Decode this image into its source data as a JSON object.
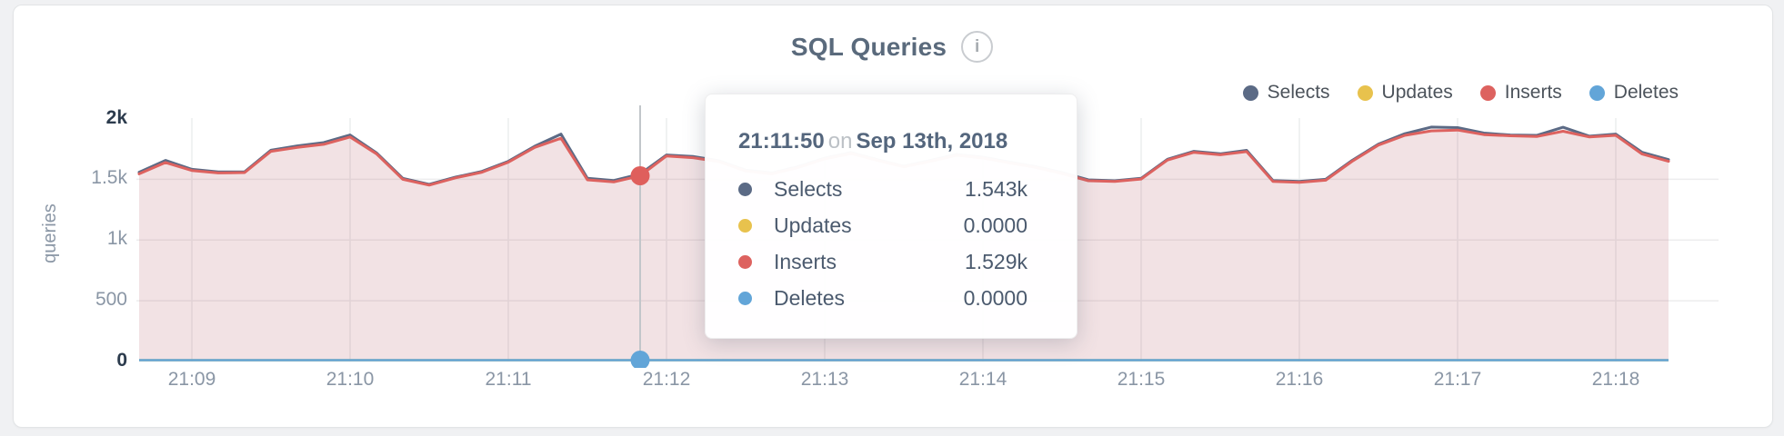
{
  "header": {
    "title": "SQL Queries",
    "info_icon": "i"
  },
  "legend": [
    {
      "label": "Selects",
      "color": "#5b6a85"
    },
    {
      "label": "Updates",
      "color": "#e8c24d"
    },
    {
      "label": "Inserts",
      "color": "#dd625f"
    },
    {
      "label": "Deletes",
      "color": "#62a5d8"
    }
  ],
  "tooltip": {
    "time": "21:11:50",
    "conjunction": "on",
    "date": "Sep 13th, 2018",
    "rows": [
      {
        "label": "Selects",
        "value": "1.543k",
        "color": "#5b6a85"
      },
      {
        "label": "Updates",
        "value": "0.0000",
        "color": "#e8c24d"
      },
      {
        "label": "Inserts",
        "value": "1.529k",
        "color": "#dd625f"
      },
      {
        "label": "Deletes",
        "value": "0.0000",
        "color": "#62a5d8"
      }
    ]
  },
  "chart_data": {
    "type": "area",
    "title": "SQL Queries",
    "ylabel": "queries",
    "ylim": [
      0,
      2000
    ],
    "grid": true,
    "legend_position": "top-right",
    "y_ticks": [
      {
        "label": "2k",
        "value": 2000,
        "emphasis": true,
        "gridline": false
      },
      {
        "label": "1.5k",
        "value": 1500,
        "emphasis": false,
        "gridline": true
      },
      {
        "label": "1k",
        "value": 1000,
        "emphasis": false,
        "gridline": true
      },
      {
        "label": "500",
        "value": 500,
        "emphasis": false,
        "gridline": true
      },
      {
        "label": "0",
        "value": 0,
        "emphasis": true,
        "gridline": false
      }
    ],
    "x_tick_labels": [
      "21:09",
      "21:10",
      "21:11",
      "21:12",
      "21:13",
      "21:14",
      "21:15",
      "21:16",
      "21:17",
      "21:18"
    ],
    "x_start": "21:08:40",
    "x_end": "21:18:20",
    "x_step_seconds": 10,
    "series": [
      {
        "name": "Selects",
        "color": "#5b6a85",
        "fill": "rgba(91,106,133,0.06)",
        "values": [
          1558,
          1655,
          1582,
          1560,
          1562,
          1740,
          1775,
          1802,
          1865,
          1718,
          1508,
          1458,
          1518,
          1565,
          1648,
          1772,
          1872,
          1508,
          1490,
          1543,
          1700,
          1688,
          1652,
          1575,
          1552,
          1605,
          1675,
          1720,
          1662,
          1608,
          1655,
          1705,
          1682,
          1642,
          1605,
          1555,
          1495,
          1488,
          1508,
          1665,
          1730,
          1710,
          1738,
          1490,
          1482,
          1500,
          1655,
          1790,
          1875,
          1930,
          1925,
          1880,
          1865,
          1862,
          1928,
          1855,
          1872,
          1722,
          1662
        ]
      },
      {
        "name": "Inserts",
        "color": "#dd625f",
        "fill": "rgba(222,96,93,0.13)",
        "values": [
          1545,
          1638,
          1572,
          1552,
          1555,
          1730,
          1762,
          1788,
          1848,
          1710,
          1500,
          1452,
          1512,
          1558,
          1640,
          1762,
          1838,
          1495,
          1478,
          1529,
          1692,
          1678,
          1645,
          1568,
          1545,
          1598,
          1668,
          1712,
          1655,
          1602,
          1648,
          1698,
          1675,
          1635,
          1598,
          1548,
          1488,
          1482,
          1502,
          1658,
          1722,
          1702,
          1728,
          1482,
          1475,
          1492,
          1648,
          1782,
          1862,
          1898,
          1905,
          1868,
          1858,
          1852,
          1895,
          1848,
          1862,
          1708,
          1648
        ]
      },
      {
        "name": "Updates",
        "color": "#e8c24d",
        "constant": 0
      },
      {
        "name": "Deletes",
        "color": "#62a5d8",
        "constant": 0
      }
    ],
    "highlight": {
      "time": "21:11:50",
      "date": "Sep 13th, 2018",
      "index": 19,
      "values": {
        "Selects": 1543,
        "Updates": 0,
        "Inserts": 1529,
        "Deletes": 0
      }
    }
  }
}
